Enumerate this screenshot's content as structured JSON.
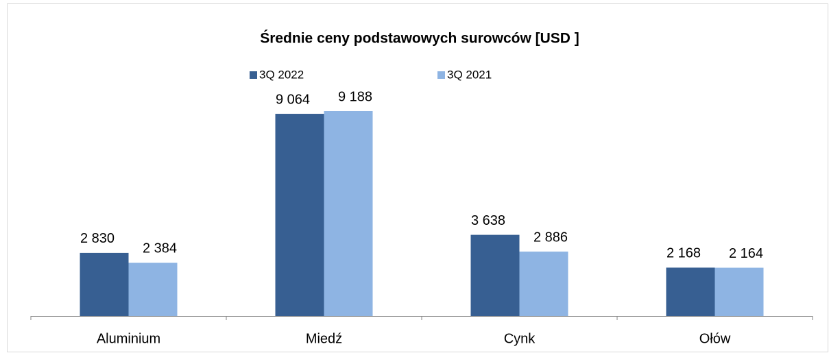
{
  "chart_data": {
    "type": "bar",
    "title": "Średnie ceny podstawowych surowców [USD ]",
    "categories": [
      "Aluminium",
      "Miedź",
      "Cynk",
      "Ołów"
    ],
    "series": [
      {
        "name": "3Q 2022",
        "color": "#375f92",
        "values": [
          2830,
          9064,
          3638,
          2168
        ],
        "value_labels": [
          "2 830",
          "9 064",
          "3 638",
          "2 168"
        ]
      },
      {
        "name": "3Q 2021",
        "color": "#8eb4e3",
        "values": [
          2384,
          9188,
          2886,
          2164
        ],
        "value_labels": [
          "2 384",
          "9 188",
          "2 886",
          "2 164"
        ]
      }
    ],
    "legend": "top"
  }
}
